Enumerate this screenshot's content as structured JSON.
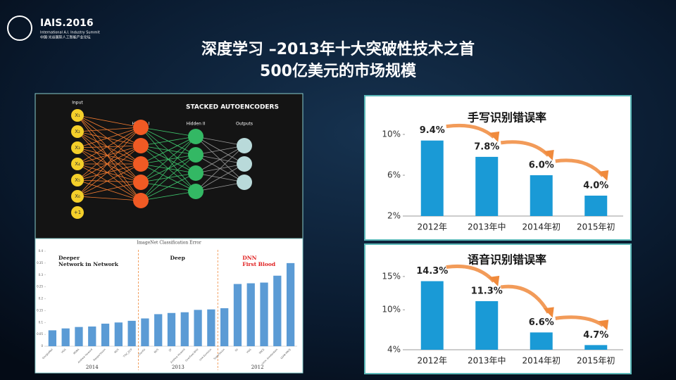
{
  "slide": {
    "logo": {
      "name": "IAIS.2016",
      "subtitle": "International A.I. Industry Summit",
      "subtitle_cn": "中国·光谷国际人工智能产业论坛"
    },
    "title": [
      "深度学习 –2013年十大突破性技术之首",
      "500亿美元的市场规模"
    ]
  },
  "diagram": {
    "title": "STACKED AUTOENCODERS",
    "layers": [
      "Input",
      "Hidden I",
      "Hidden II",
      "Outputs"
    ],
    "inputs": [
      "X₁",
      "X₂",
      "X₃",
      "X₄",
      "X₅",
      "X₆",
      "+1"
    ]
  },
  "chart_data": [
    {
      "type": "bar",
      "title": "手写识别错误率",
      "categories": [
        "2012年",
        "2013年中",
        "2014年初",
        "2015年初"
      ],
      "values": [
        9.4,
        7.8,
        6.0,
        4.0
      ],
      "value_labels": [
        "9.4%",
        "7.8%",
        "6.0%",
        "4.0%"
      ],
      "color": "#1a9ad6",
      "ylim": [
        2,
        12
      ],
      "yticks": [
        {
          "value": 2,
          "label": "2%"
        },
        {
          "value": 6,
          "label": "6%"
        },
        {
          "value": 10,
          "label": "10%"
        }
      ]
    },
    {
      "type": "bar",
      "title": "语音识别错误率",
      "categories": [
        "2012年",
        "2013年中",
        "2014年初",
        "2015年初"
      ],
      "values": [
        14.3,
        11.3,
        6.6,
        4.7
      ],
      "value_labels": [
        "14.3%",
        "11.3%",
        "6.6%",
        "4.7%"
      ],
      "color": "#1a9ad6",
      "ylim": [
        4,
        17
      ],
      "yticks": [
        {
          "value": 4,
          "label": "4%"
        },
        {
          "value": 10,
          "label": "10%"
        },
        {
          "value": 15,
          "label": "15%"
        }
      ]
    },
    {
      "type": "grouped-bar",
      "title": "ImageNet Classification Error",
      "color": "#5b9bd5",
      "annotation_color": "#e02020",
      "ylim": [
        0,
        0.4
      ],
      "yticks": [
        0,
        0.05,
        0.1,
        0.15,
        0.2,
        0.25,
        0.3,
        0.35,
        0.4
      ],
      "groups": [
        {
          "name": "2014",
          "annotation": [
            "Deeper",
            "Network in Network"
          ],
          "categories": [
            "GoogLeNet",
            "VGG",
            "MSRA",
            "Andrew Howard",
            "DeeperVision",
            "NUS",
            "TTIC_ECP"
          ],
          "values": [
            0.067,
            0.075,
            0.081,
            0.083,
            0.095,
            0.1,
            0.107
          ]
        },
        {
          "name": "2013",
          "annotation": [
            "Deep"
          ],
          "categories": [
            "Clarifai",
            "NUS",
            "ZF",
            "Andrew Howard",
            "OverFeat-NYU",
            "UvA-Euvision"
          ],
          "values": [
            0.117,
            0.135,
            0.14,
            0.143,
            0.153,
            0.155
          ]
        },
        {
          "name": "2012",
          "annotation": [
            "DNN",
            "First Blood"
          ],
          "categories": [
            "SuperVision",
            "ISI",
            "VGG",
            "XRCE",
            "Univ. Amsterdam",
            "LEAR-XRCE"
          ],
          "values": [
            0.16,
            0.262,
            0.265,
            0.268,
            0.297,
            0.35
          ]
        }
      ]
    }
  ]
}
